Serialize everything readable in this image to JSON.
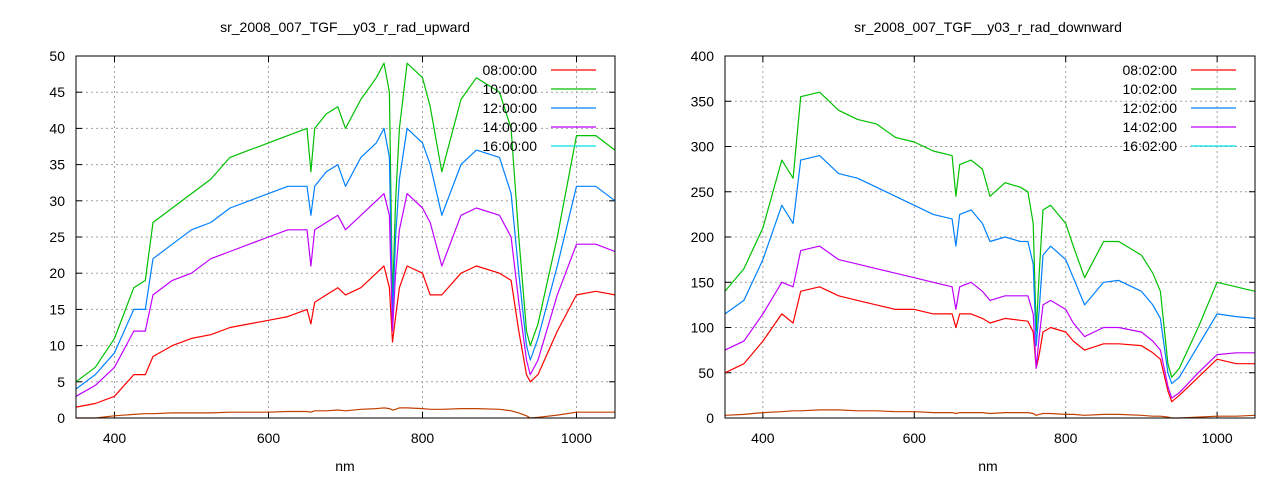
{
  "chart_data": [
    {
      "type": "line",
      "title": "sr_2008_007_TGF__y03_r_rad_upward",
      "xlabel": "nm",
      "ylabel": "",
      "xlim": [
        350,
        1050
      ],
      "ylim": [
        0,
        50
      ],
      "xticks": [
        400,
        600,
        800,
        1000
      ],
      "yticks": [
        0,
        5,
        10,
        15,
        20,
        25,
        30,
        35,
        40,
        45,
        50
      ],
      "grid": true,
      "legend_position": "top-right",
      "x": [
        350,
        375,
        400,
        425,
        440,
        450,
        475,
        500,
        525,
        550,
        575,
        600,
        625,
        650,
        655,
        660,
        675,
        690,
        700,
        720,
        740,
        750,
        757,
        761,
        765,
        770,
        780,
        800,
        810,
        825,
        850,
        870,
        900,
        915,
        925,
        935,
        940,
        950,
        975,
        1000,
        1025,
        1050
      ],
      "series": [
        {
          "name": "08:00:00",
          "legend_color": "#ff0000",
          "line_color": "#ff0000",
          "values": [
            1.5,
            2,
            3,
            6,
            6,
            8.5,
            10,
            11,
            11.5,
            12.5,
            13,
            13.5,
            14,
            15,
            13,
            16,
            17,
            18,
            17,
            18,
            20,
            21,
            18,
            10.5,
            14,
            18,
            21,
            20,
            17,
            17,
            20,
            21,
            20,
            19,
            12,
            6,
            5,
            6,
            12,
            17,
            17.5,
            17
          ]
        },
        {
          "name": "10:00:00",
          "legend_color": "#00c000",
          "line_color": "#00c000",
          "values": [
            5,
            7,
            11,
            18,
            19,
            27,
            29,
            31,
            33,
            36,
            37,
            38,
            39,
            40,
            34,
            40,
            42,
            43,
            40,
            44,
            47,
            49,
            45,
            16,
            30,
            40,
            49,
            47,
            43,
            34,
            44,
            47,
            45,
            40,
            25,
            12,
            10,
            13,
            25,
            39,
            39,
            37
          ]
        },
        {
          "name": "12:00:00",
          "legend_color": "#0080ff",
          "line_color": "#0080ff",
          "values": [
            4,
            6,
            9,
            15,
            15,
            22,
            24,
            26,
            27,
            29,
            30,
            31,
            32,
            32,
            28,
            32,
            34,
            35,
            32,
            36,
            38,
            40,
            36,
            14,
            25,
            33,
            40,
            38,
            35,
            28,
            35,
            37,
            36,
            31,
            20,
            10,
            8,
            11,
            21,
            32,
            32,
            30
          ]
        },
        {
          "name": "14:00:00",
          "legend_color": "#c000ff",
          "line_color": "#c000ff",
          "values": [
            3,
            4.5,
            7,
            12,
            12,
            17,
            19,
            20,
            22,
            23,
            24,
            25,
            26,
            26,
            21,
            26,
            27,
            28,
            26,
            28,
            30,
            31,
            28,
            12,
            20,
            26,
            31,
            29,
            27,
            21,
            28,
            29,
            28,
            25,
            16,
            8,
            6,
            8,
            17,
            24,
            24,
            23
          ]
        },
        {
          "name": "16:00:00",
          "legend_color": "#00e0e0",
          "line_color": "#c04000",
          "values": [
            0,
            0,
            0.3,
            0.5,
            0.6,
            0.6,
            0.7,
            0.7,
            0.7,
            0.8,
            0.8,
            0.8,
            0.9,
            0.9,
            0.8,
            1,
            1,
            1.1,
            1,
            1.2,
            1.3,
            1.4,
            1.3,
            1.1,
            1.2,
            1.4,
            1.4,
            1.3,
            1.2,
            1.2,
            1.3,
            1.3,
            1.2,
            1.0,
            0.7,
            0.3,
            0,
            0.1,
            0.4,
            0.8,
            0.8,
            0.8
          ]
        }
      ]
    },
    {
      "type": "line",
      "title": "sr_2008_007_TGF__y03_r_rad_downward",
      "xlabel": "nm",
      "ylabel": "",
      "xlim": [
        350,
        1050
      ],
      "ylim": [
        0,
        400
      ],
      "xticks": [
        400,
        600,
        800,
        1000
      ],
      "yticks": [
        0,
        50,
        100,
        150,
        200,
        250,
        300,
        350,
        400
      ],
      "grid": true,
      "legend_position": "top-right",
      "x": [
        350,
        375,
        400,
        425,
        440,
        450,
        475,
        500,
        525,
        550,
        575,
        600,
        625,
        650,
        655,
        660,
        675,
        690,
        700,
        720,
        740,
        750,
        757,
        761,
        765,
        770,
        780,
        800,
        810,
        825,
        850,
        870,
        900,
        915,
        925,
        935,
        940,
        950,
        975,
        1000,
        1025,
        1050
      ],
      "series": [
        {
          "name": "08:02:00",
          "legend_color": "#ff0000",
          "line_color": "#ff0000",
          "values": [
            50,
            60,
            85,
            115,
            105,
            140,
            145,
            135,
            130,
            125,
            120,
            120,
            115,
            115,
            100,
            115,
            115,
            110,
            105,
            110,
            108,
            107,
            95,
            55,
            70,
            95,
            100,
            95,
            85,
            75,
            82,
            82,
            80,
            72,
            65,
            30,
            18,
            25,
            45,
            65,
            60,
            60
          ]
        },
        {
          "name": "10:02:00",
          "legend_color": "#00c000",
          "line_color": "#00c000",
          "values": [
            140,
            165,
            210,
            285,
            265,
            355,
            360,
            340,
            330,
            325,
            310,
            305,
            295,
            290,
            245,
            280,
            285,
            275,
            245,
            260,
            255,
            250,
            215,
            95,
            160,
            230,
            235,
            215,
            190,
            155,
            195,
            195,
            180,
            160,
            140,
            60,
            45,
            55,
            100,
            150,
            145,
            140
          ]
        },
        {
          "name": "12:02:00",
          "legend_color": "#0080ff",
          "line_color": "#0080ff",
          "values": [
            115,
            130,
            175,
            235,
            215,
            285,
            290,
            270,
            265,
            255,
            245,
            235,
            225,
            220,
            190,
            225,
            230,
            215,
            195,
            200,
            195,
            195,
            170,
            80,
            120,
            180,
            190,
            175,
            155,
            125,
            150,
            152,
            140,
            125,
            110,
            50,
            38,
            45,
            80,
            115,
            112,
            110
          ]
        },
        {
          "name": "14:02:00",
          "legend_color": "#c000ff",
          "line_color": "#c000ff",
          "values": [
            75,
            85,
            115,
            150,
            145,
            185,
            190,
            175,
            170,
            165,
            160,
            155,
            150,
            145,
            120,
            145,
            150,
            140,
            130,
            135,
            135,
            135,
            115,
            55,
            90,
            125,
            130,
            120,
            105,
            90,
            100,
            100,
            95,
            85,
            75,
            35,
            22,
            28,
            50,
            70,
            72,
            72
          ]
        },
        {
          "name": "16:02:00",
          "legend_color": "#00e0e0",
          "line_color": "#c04000",
          "values": [
            3,
            4,
            6,
            7,
            8,
            8,
            9,
            9,
            8,
            8,
            7,
            7,
            6,
            6,
            5,
            6,
            6,
            6,
            5,
            6,
            6,
            6,
            5,
            3,
            4,
            5,
            5,
            4,
            4,
            3,
            4,
            4,
            3,
            2,
            2,
            1,
            0,
            0,
            1,
            2,
            2,
            3
          ]
        }
      ]
    }
  ]
}
